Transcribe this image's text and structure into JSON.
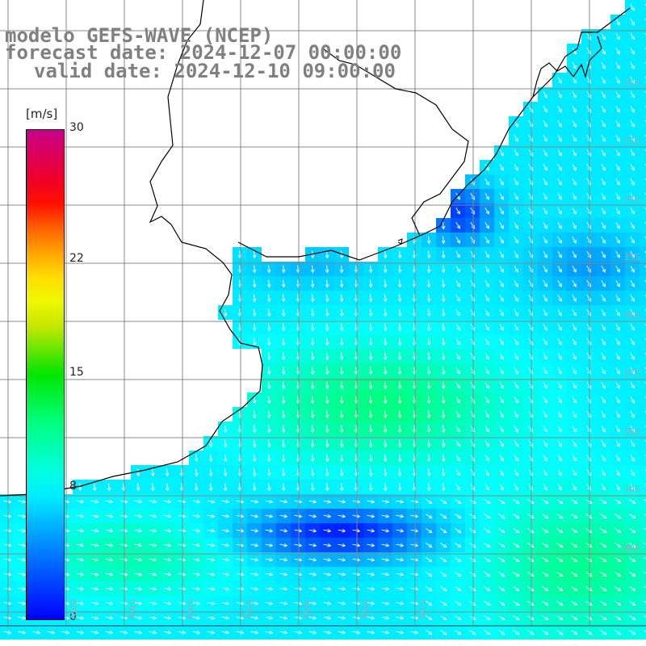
{
  "title": {
    "line1": "modelo GEFS-WAVE (NCEP)",
    "line2": "forecast date: 2024-12-07 00:00:00",
    "line3": "valid date: 2024-12-10 09:00:00"
  },
  "colorbar": {
    "unit": "[m/s]",
    "min": 0,
    "max": 30,
    "ticks": [
      "30",
      "22",
      "15",
      "8",
      "0"
    ],
    "tick_values": [
      30,
      22,
      15,
      8,
      0
    ]
  },
  "lat_labels": [
    "32S",
    "33S",
    "34S",
    "35S",
    "36S",
    "37S",
    "38S",
    "39S",
    "40S"
  ],
  "lon_labels": [
    "60W",
    "59W",
    "58W",
    "57W",
    "56W",
    "55W",
    "54W"
  ],
  "colors": {
    "ocean_low": "#0033ff",
    "ocean_mid": "#00e5ff",
    "ocean_high": "#00ff55",
    "land": "#ffffff",
    "coast": "#000000",
    "grid": "#888888",
    "arrow": "#ffffff"
  }
}
